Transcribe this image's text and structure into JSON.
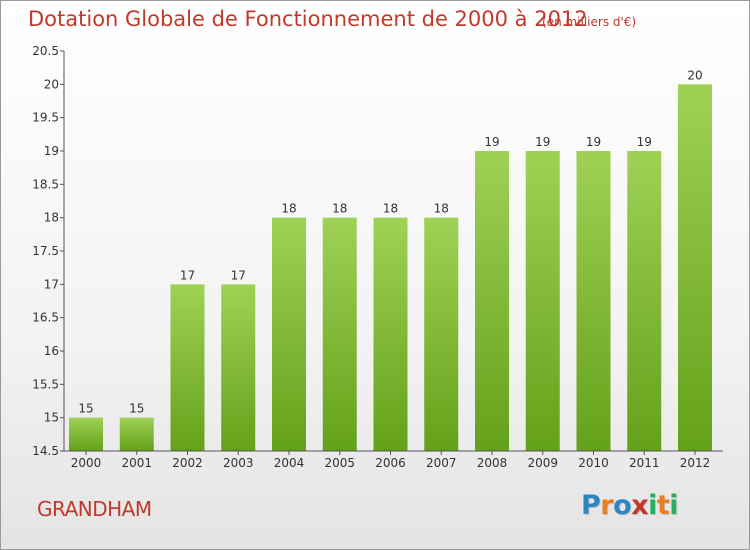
{
  "header": {
    "title": "Dotation Globale de Fonctionnement de 2000 à 2012",
    "unit_note": "(en milliers d'€)"
  },
  "footer": {
    "place": "GRANDHAM",
    "logo_text": "Proxiti"
  },
  "colors": {
    "title": "#c0392b",
    "bar_top": "#9fd155",
    "bar_bottom": "#64a11a",
    "logo": [
      "#2e86c1",
      "#e67e22",
      "#27ae60",
      "#c0392b"
    ]
  },
  "chart_data": {
    "type": "bar",
    "title": "Dotation Globale de Fonctionnement de 2000 à 2012",
    "subtitle": "(en milliers d'€)",
    "categories": [
      "2000",
      "2001",
      "2002",
      "2003",
      "2004",
      "2005",
      "2006",
      "2007",
      "2008",
      "2009",
      "2010",
      "2011",
      "2012"
    ],
    "values": [
      15,
      15,
      17,
      17,
      18,
      18,
      18,
      18,
      19,
      19,
      19,
      19,
      20
    ],
    "ylim": [
      14.5,
      20.5
    ],
    "yticks": [
      "14.5",
      "15",
      "15.5",
      "16",
      "16.5",
      "17",
      "17.5",
      "18",
      "18.5",
      "19",
      "19.5",
      "20",
      "20.5"
    ],
    "grid": false,
    "legend": "none"
  }
}
